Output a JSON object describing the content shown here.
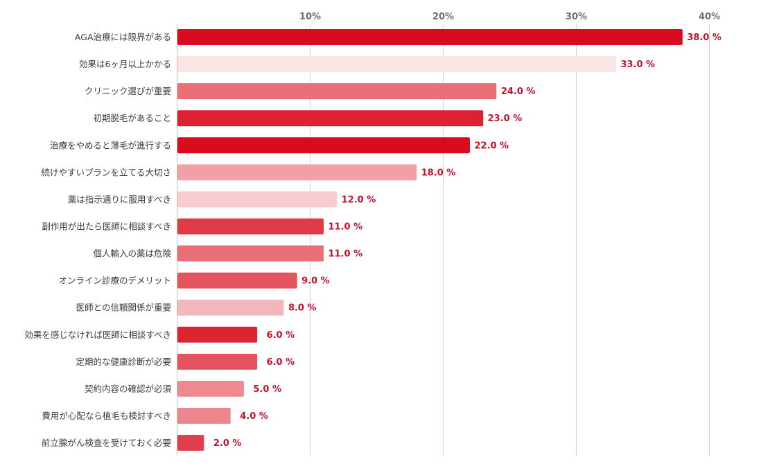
{
  "chart_data": {
    "type": "bar",
    "orientation": "horizontal",
    "title": "",
    "xlabel": "",
    "ylabel": "",
    "xlim": [
      0,
      40
    ],
    "x_ticks": [
      10,
      20,
      30,
      40
    ],
    "x_tick_labels": [
      "10%",
      "20%",
      "30%",
      "40%"
    ],
    "grid": true,
    "categories": [
      "AGA治療には限界がある",
      "効果は6ヶ月以上かかる",
      "クリニック選びが重要",
      "初期脱毛があること",
      "治療をやめると薄毛が進行する",
      "続けやすいプランを立てる大切さ",
      "薬は指示通りに服用すべき",
      "副作用が出たら医師に相談すべき",
      "個人輸入の薬は危険",
      "オンライン診療のデメリット",
      "医師との信頼関係が重要",
      "効果を感じなければ医師に相談すべき",
      "定期的な健康診断が必要",
      "契約内容の確認が必須",
      "費用が心配なら植毛も検討すべき",
      "前立腺がん検査を受けておく必要"
    ],
    "values": [
      38.0,
      33.0,
      24.0,
      23.0,
      22.0,
      18.0,
      12.0,
      11.0,
      11.0,
      9.0,
      8.0,
      6.0,
      6.0,
      5.0,
      4.0,
      2.0
    ],
    "value_labels": [
      "38.0 %",
      "33.0 %",
      "24.0 %",
      "23.0 %",
      "22.0 %",
      "18.0 %",
      "12.0 %",
      "11.0 %",
      "11.0 %",
      "9.0 %",
      "8.0 %",
      "6.0 %",
      "6.0 %",
      "5.0 %",
      "4.0 %",
      "2.0 %"
    ],
    "bar_colors": [
      "#d80c1e",
      "#fbe4e6",
      "#ea6f76",
      "#dc2130",
      "#db0b1d",
      "#f0a0a6",
      "#f6ccd1",
      "#df3a45",
      "#ea6f76",
      "#e55560",
      "#f3b6bb",
      "#dd2431",
      "#e5545e",
      "#ee898f",
      "#ee878d",
      "#e0404c"
    ]
  },
  "colors": {
    "value_label": "#c8102e",
    "tick_label": "#6f6f6f",
    "category_label": "#3b3b3b",
    "grid": "#cfcfcf"
  }
}
